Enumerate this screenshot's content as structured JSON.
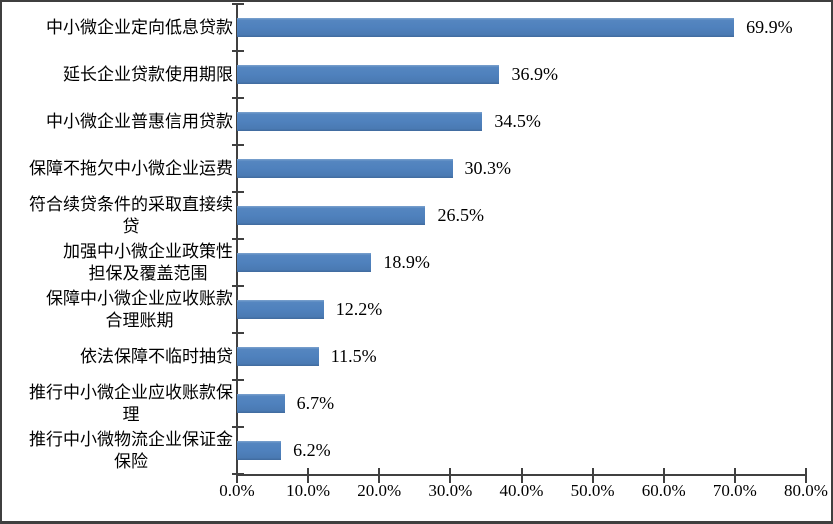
{
  "chart_data": {
    "type": "bar",
    "orientation": "horizontal",
    "title": "",
    "categories": [
      "中小微企业定向低息贷款",
      "延长企业贷款使用期限",
      "中小微企业普惠信用贷款",
      "保障不拖欠中小微企业运费",
      "符合续贷条件的采取直接续\n贷",
      "加强中小微企业政策性\n担保及覆盖范围",
      "保障中小微企业应收账款\n合理账期",
      "依法保障不临时抽贷",
      "推行中小微企业应收账款保\n理",
      "推行中小微物流企业保证金\n保险"
    ],
    "values": [
      69.9,
      36.9,
      34.5,
      30.3,
      26.5,
      18.9,
      12.2,
      11.5,
      6.7,
      6.2
    ],
    "value_labels": [
      "69.9%",
      "36.9%",
      "34.5%",
      "30.3%",
      "26.5%",
      "18.9%",
      "12.2%",
      "11.5%",
      "6.7%",
      "6.2%"
    ],
    "xlabel": "",
    "ylabel": "",
    "xlim": [
      0,
      80
    ],
    "x_tick_values": [
      0,
      10,
      20,
      30,
      40,
      50,
      60,
      70,
      80
    ],
    "x_tick_labels": [
      "0.0%",
      "10.0%",
      "20.0%",
      "30.0%",
      "40.0%",
      "50.0%",
      "60.0%",
      "70.0%",
      "80.0%"
    ],
    "grid": false,
    "legend": "none",
    "colors": {
      "bar": "#4f81bd",
      "axis": "#404040",
      "text": "#000000",
      "background": "#ffffff",
      "frame_border": "#3f3f3f"
    }
  }
}
